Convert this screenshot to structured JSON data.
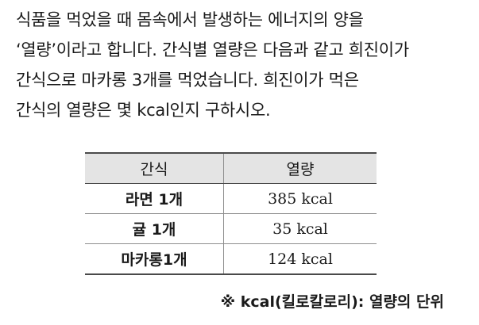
{
  "problem": {
    "lines": [
      "식품을 먹었을 때 몸속에서 발생하는 에너지의 양을",
      "‘열량’이라고 합니다. 간식별 열량은 다음과 같고 희진이가",
      "간식으로 마카롱 3개를 먹었습니다. 희진이가 먹은",
      "간식의 열량은 몇 kcal인지 구하시오."
    ]
  },
  "table": {
    "headers": [
      "간식",
      "열량"
    ],
    "rows": [
      {
        "snack": "라면 1개",
        "calories": "385 kcal"
      },
      {
        "snack": "귤 1개",
        "calories": "35 kcal"
      },
      {
        "snack": "마카롱1개",
        "calories": "124 kcal"
      }
    ]
  },
  "note": "※ kcal(킬로칼로리): 열량의 단위"
}
